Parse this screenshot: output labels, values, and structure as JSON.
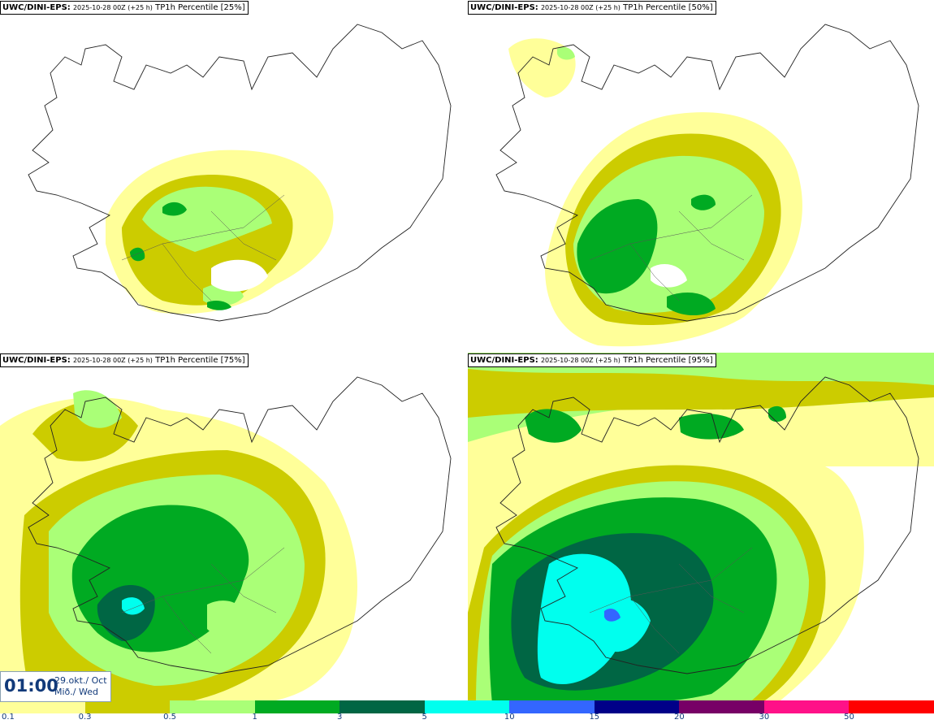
{
  "panels": [
    {
      "model": "UWC/DINI-EPS:",
      "run": "2025-10-28 00Z (+25 h)",
      "field": "TP1h Percentile [25%]"
    },
    {
      "model": "UWC/DINI-EPS:",
      "run": "2025-10-28 00Z (+25 h)",
      "field": "TP1h Percentile [50%]"
    },
    {
      "model": "UWC/DINI-EPS:",
      "run": "2025-10-28 00Z (+25 h)",
      "field": "TP1h Percentile [75%]"
    },
    {
      "model": "UWC/DINI-EPS:",
      "run": "2025-10-28 00Z (+25 h)",
      "field": "TP1h Percentile [95%]"
    }
  ],
  "time": {
    "hour": "01:00",
    "date_line1": "29.okt./ Oct",
    "date_line2": "Mið./ Wed"
  },
  "legend": {
    "ticks": [
      "0.1",
      "0.3",
      "0.5",
      "1",
      "3",
      "5",
      "10",
      "15",
      "20",
      "30",
      "50"
    ],
    "colors": [
      "#ffff99",
      "#cccc00",
      "#aaff77",
      "#00aa22",
      "#006644",
      "#00ffee",
      "#3366ff",
      "#000088",
      "#770066",
      "#ff1188",
      "#ff0000"
    ]
  }
}
